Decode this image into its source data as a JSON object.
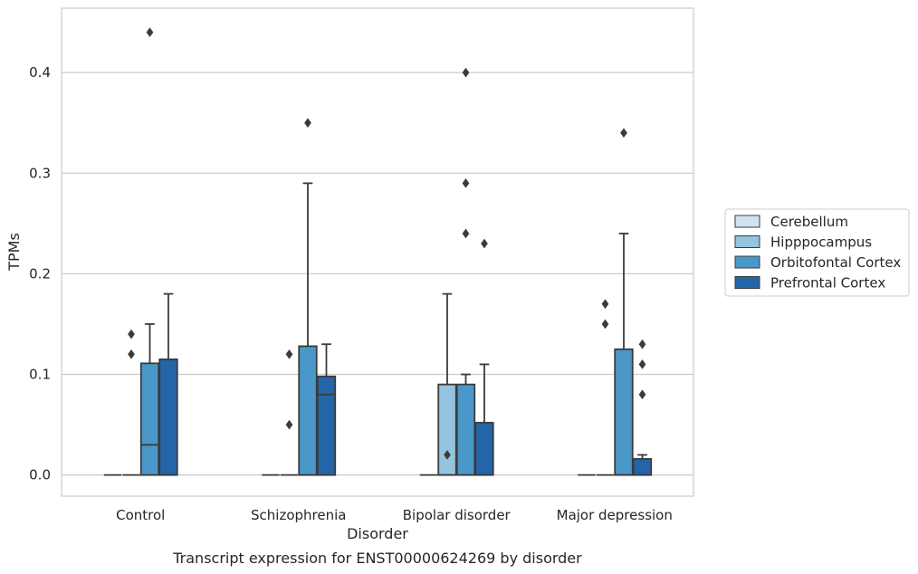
{
  "caption": "Transcript expression for ENST00000624269 by disorder",
  "chart_data": {
    "type": "boxplot",
    "xlabel": "Disorder",
    "ylabel": "TPMs",
    "ylim": [
      -0.021,
      0.464
    ],
    "yticks": [
      0.0,
      0.1,
      0.2,
      0.3,
      0.4
    ],
    "ytick_labels": [
      "0.0",
      "0.1",
      "0.2",
      "0.3",
      "0.4"
    ],
    "grid": "horizontal",
    "legend_position": "right",
    "categories": [
      "Control",
      "Schizophrenia",
      "Bipolar disorder",
      "Major depression"
    ],
    "series": [
      {
        "name": "Cerebellum",
        "color": "#d0e1f2",
        "boxes": [
          {
            "q1": 0,
            "median": 0,
            "q3": 0,
            "whislo": 0,
            "whishi": 0,
            "fliers": []
          },
          {
            "q1": 0,
            "median": 0,
            "q3": 0,
            "whislo": 0,
            "whishi": 0,
            "fliers": []
          },
          {
            "q1": 0,
            "median": 0,
            "q3": 0,
            "whislo": 0,
            "whishi": 0,
            "fliers": []
          },
          {
            "q1": 0,
            "median": 0,
            "q3": 0,
            "whislo": 0,
            "whishi": 0,
            "fliers": []
          }
        ]
      },
      {
        "name": "Hipppocampus",
        "color": "#94c4df",
        "boxes": [
          {
            "q1": 0,
            "median": 0,
            "q3": 0,
            "whislo": 0,
            "whishi": 0,
            "fliers": [
              0.12,
              0.14
            ]
          },
          {
            "q1": 0,
            "median": 0,
            "q3": 0,
            "whislo": 0,
            "whishi": 0,
            "fliers": [
              0.05,
              0.12
            ]
          },
          {
            "q1": 0,
            "median": 0,
            "q3": 0.09,
            "whislo": 0,
            "whishi": 0.18,
            "fliers": [
              0.02
            ]
          },
          {
            "q1": 0,
            "median": 0,
            "q3": 0,
            "whislo": 0,
            "whishi": 0,
            "fliers": [
              0.15,
              0.17
            ]
          }
        ]
      },
      {
        "name": "Orbitofontal Cortex",
        "color": "#4a98c9",
        "boxes": [
          {
            "q1": 0,
            "median": 0.03,
            "q3": 0.111,
            "whislo": 0,
            "whishi": 0.15,
            "fliers": [
              0.44
            ]
          },
          {
            "q1": 0,
            "median": 0,
            "q3": 0.128,
            "whislo": 0,
            "whishi": 0.29,
            "fliers": [
              0.35
            ]
          },
          {
            "q1": 0,
            "median": 0,
            "q3": 0.09,
            "whislo": 0,
            "whishi": 0.1,
            "fliers": [
              0.24,
              0.29,
              0.4
            ]
          },
          {
            "q1": 0,
            "median": 0,
            "q3": 0.125,
            "whislo": 0,
            "whishi": 0.24,
            "fliers": [
              0.34
            ]
          }
        ]
      },
      {
        "name": "Prefrontal Cortex",
        "color": "#2464a8",
        "boxes": [
          {
            "q1": 0,
            "median": 0,
            "q3": 0.115,
            "whislo": 0,
            "whishi": 0.18,
            "fliers": []
          },
          {
            "q1": 0,
            "median": 0.08,
            "q3": 0.098,
            "whislo": 0,
            "whishi": 0.13,
            "fliers": []
          },
          {
            "q1": 0,
            "median": 0,
            "q3": 0.052,
            "whislo": 0,
            "whishi": 0.11,
            "fliers": [
              0.23
            ]
          },
          {
            "q1": 0,
            "median": 0,
            "q3": 0.016,
            "whislo": 0,
            "whishi": 0.02,
            "fliers": [
              0.08,
              0.11,
              0.13
            ]
          }
        ]
      }
    ]
  },
  "colors": {
    "frame": "#cccccc",
    "grid": "#cccccc",
    "line": "#3b3b3b",
    "text": "#262626"
  }
}
